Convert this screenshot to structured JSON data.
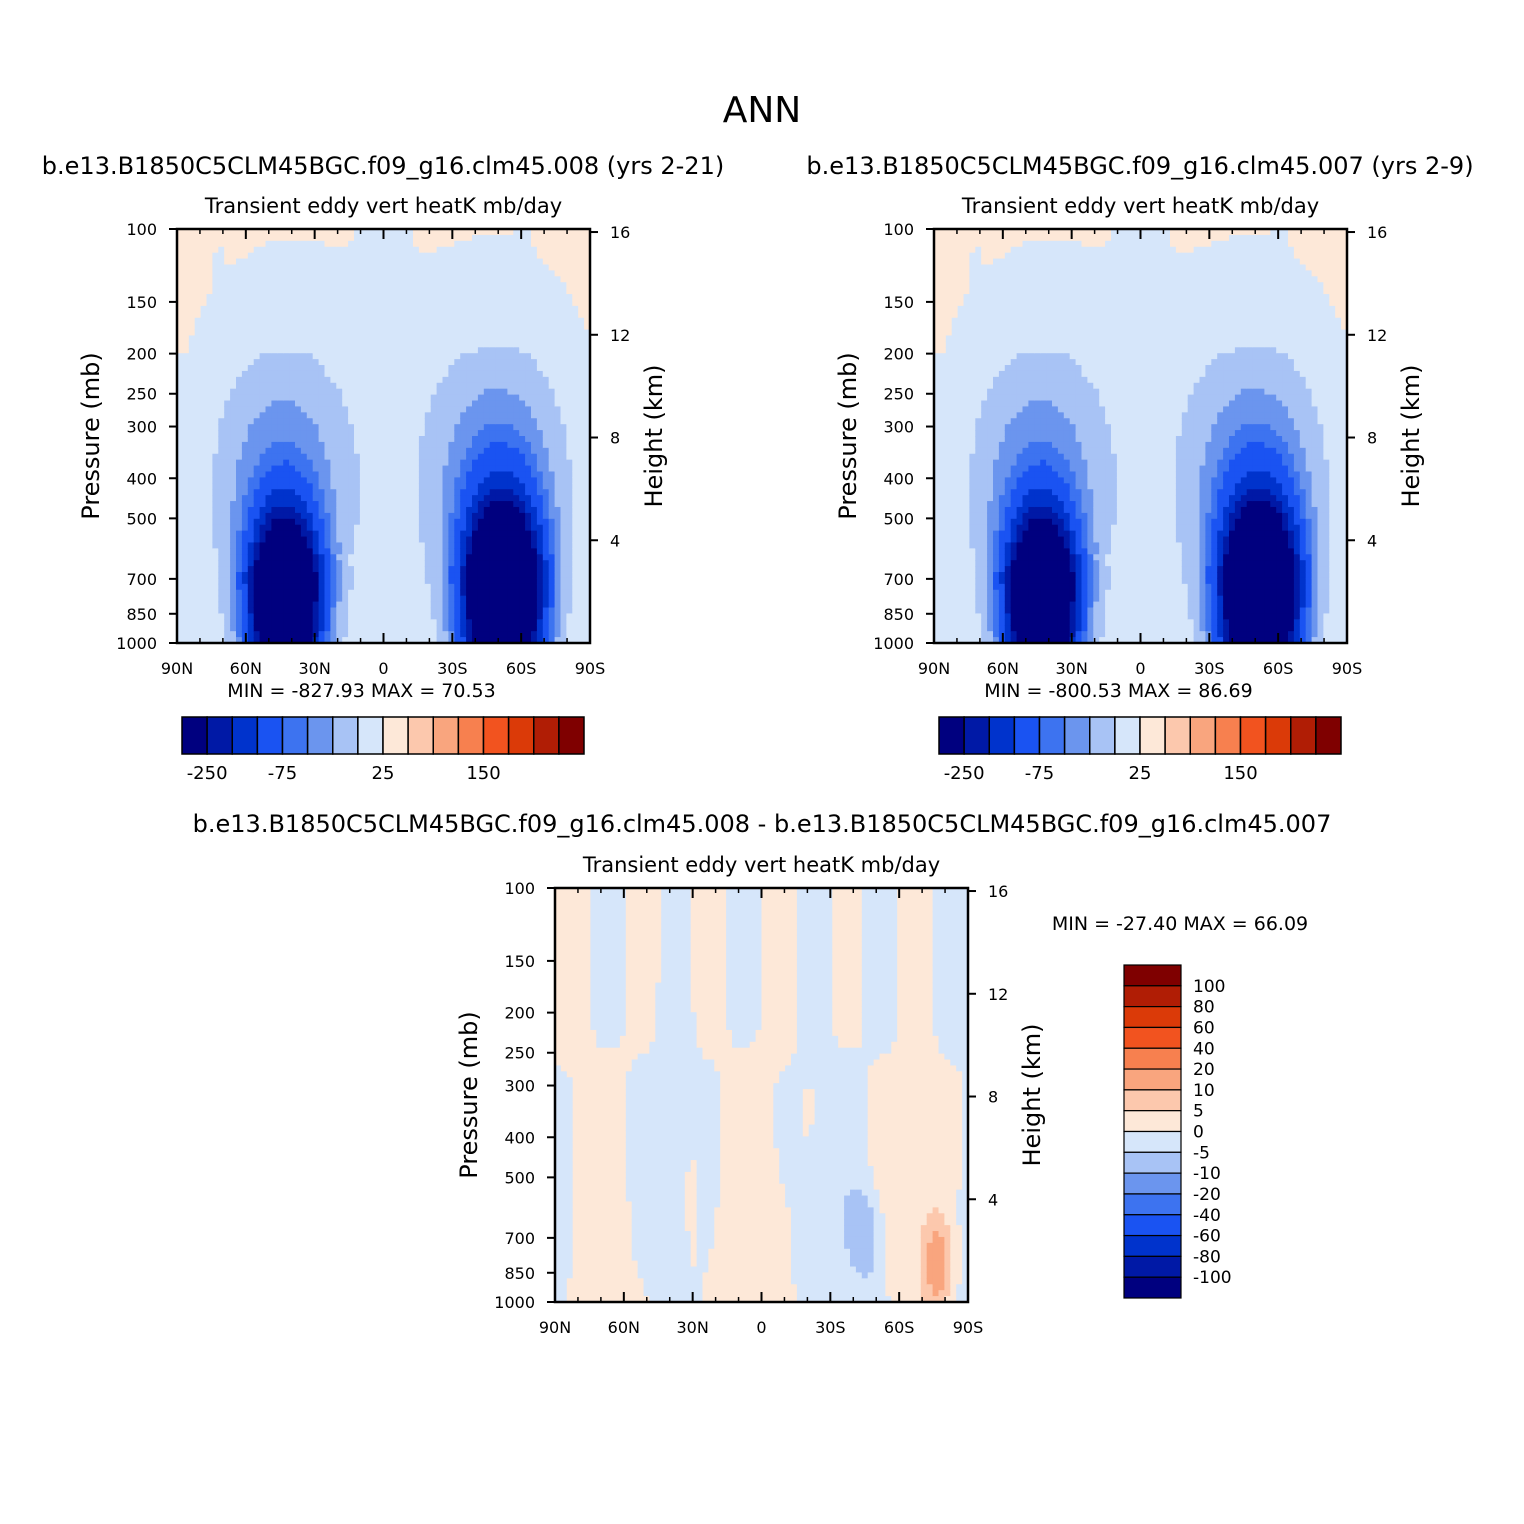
{
  "page_title": "ANN",
  "panels": [
    {
      "id": "p1",
      "case_title": "b.e13.B1850C5CLM45BGC.f09_g16.clm45.008 (yrs 2-21)",
      "plot_title": "Transient eddy vert heatK mb/day",
      "min_max": "MIN = -827.93   MAX =   70.53"
    },
    {
      "id": "p2",
      "case_title": "b.e13.B1850C5CLM45BGC.f09_g16.clm45.007 (yrs 2-9)",
      "plot_title": "Transient eddy vert heatK mb/day",
      "min_max": "MIN = -800.53   MAX =   86.69"
    },
    {
      "id": "p3",
      "case_title": "b.e13.B1850C5CLM45BGC.f09_g16.clm45.008 - b.e13.B1850C5CLM45BGC.f09_g16.clm45.007",
      "plot_title": "Transient eddy vert heatK mb/day",
      "min_max": "MIN = -27.40   MAX =   66.09"
    }
  ],
  "axes": {
    "y_left_label": "Pressure (mb)",
    "y_right_label": "Height (km)",
    "y_left_ticks": [
      "100",
      "150",
      "200",
      "250",
      "300",
      "400",
      "500",
      "700",
      "850",
      "1000"
    ],
    "y_right_ticks": [
      "16",
      "12",
      "8",
      "4"
    ],
    "x_ticks": [
      "90N",
      "60N",
      "30N",
      "0",
      "30S",
      "60S",
      "90S"
    ]
  },
  "colors": {
    "palette": [
      "#00007f",
      "#0019a6",
      "#0033cc",
      "#1a53f2",
      "#3d73f0",
      "#6b95ee",
      "#a8c3f5",
      "#d6e6fa",
      "#fde8d8",
      "#fcc8ad",
      "#f9a57e",
      "#f7804f",
      "#f2531f",
      "#db3a08",
      "#b01d05",
      "#7f0000"
    ],
    "diff_palette": [
      "#00007f",
      "#0019a6",
      "#0033cc",
      "#1a53f2",
      "#3d73f0",
      "#6b95ee",
      "#a8c3f5",
      "#d6e6fa",
      "#fde8d8",
      "#fcc8ad",
      "#f9a57e",
      "#f7804f",
      "#f2531f",
      "#db3a08",
      "#b01d05",
      "#7f0000"
    ]
  },
  "chart_data": [
    {
      "type": "heatmap",
      "title": "Transient eddy vert heatK mb/day",
      "xlabel": "",
      "ylabel": "Pressure (mb)",
      "y2label": "Height (km)",
      "x_range": [
        90,
        -90
      ],
      "y_range": [
        1000,
        100
      ],
      "y_scale": "log",
      "colorbar_labels": [
        "-250",
        "-75",
        "25",
        "150"
      ],
      "min": -827.93,
      "max": 70.53
    },
    {
      "type": "heatmap",
      "title": "Transient eddy vert heatK mb/day",
      "xlabel": "",
      "ylabel": "Pressure (mb)",
      "y2label": "Height (km)",
      "x_range": [
        90,
        -90
      ],
      "y_range": [
        1000,
        100
      ],
      "y_scale": "log",
      "colorbar_labels": [
        "-250",
        "-75",
        "25",
        "150"
      ],
      "min": -800.53,
      "max": 86.69
    },
    {
      "type": "heatmap",
      "title": "Transient eddy vert heatK mb/day",
      "xlabel": "",
      "ylabel": "Pressure (mb)",
      "y2label": "Height (km)",
      "x_range": [
        90,
        -90
      ],
      "y_range": [
        1000,
        100
      ],
      "y_scale": "log",
      "colorbar_labels": [
        "100",
        "80",
        "60",
        "40",
        "20",
        "10",
        "5",
        "0",
        "-5",
        "-10",
        "-20",
        "-40",
        "-60",
        "-80",
        "-100"
      ],
      "min": -27.4,
      "max": 66.09
    }
  ]
}
